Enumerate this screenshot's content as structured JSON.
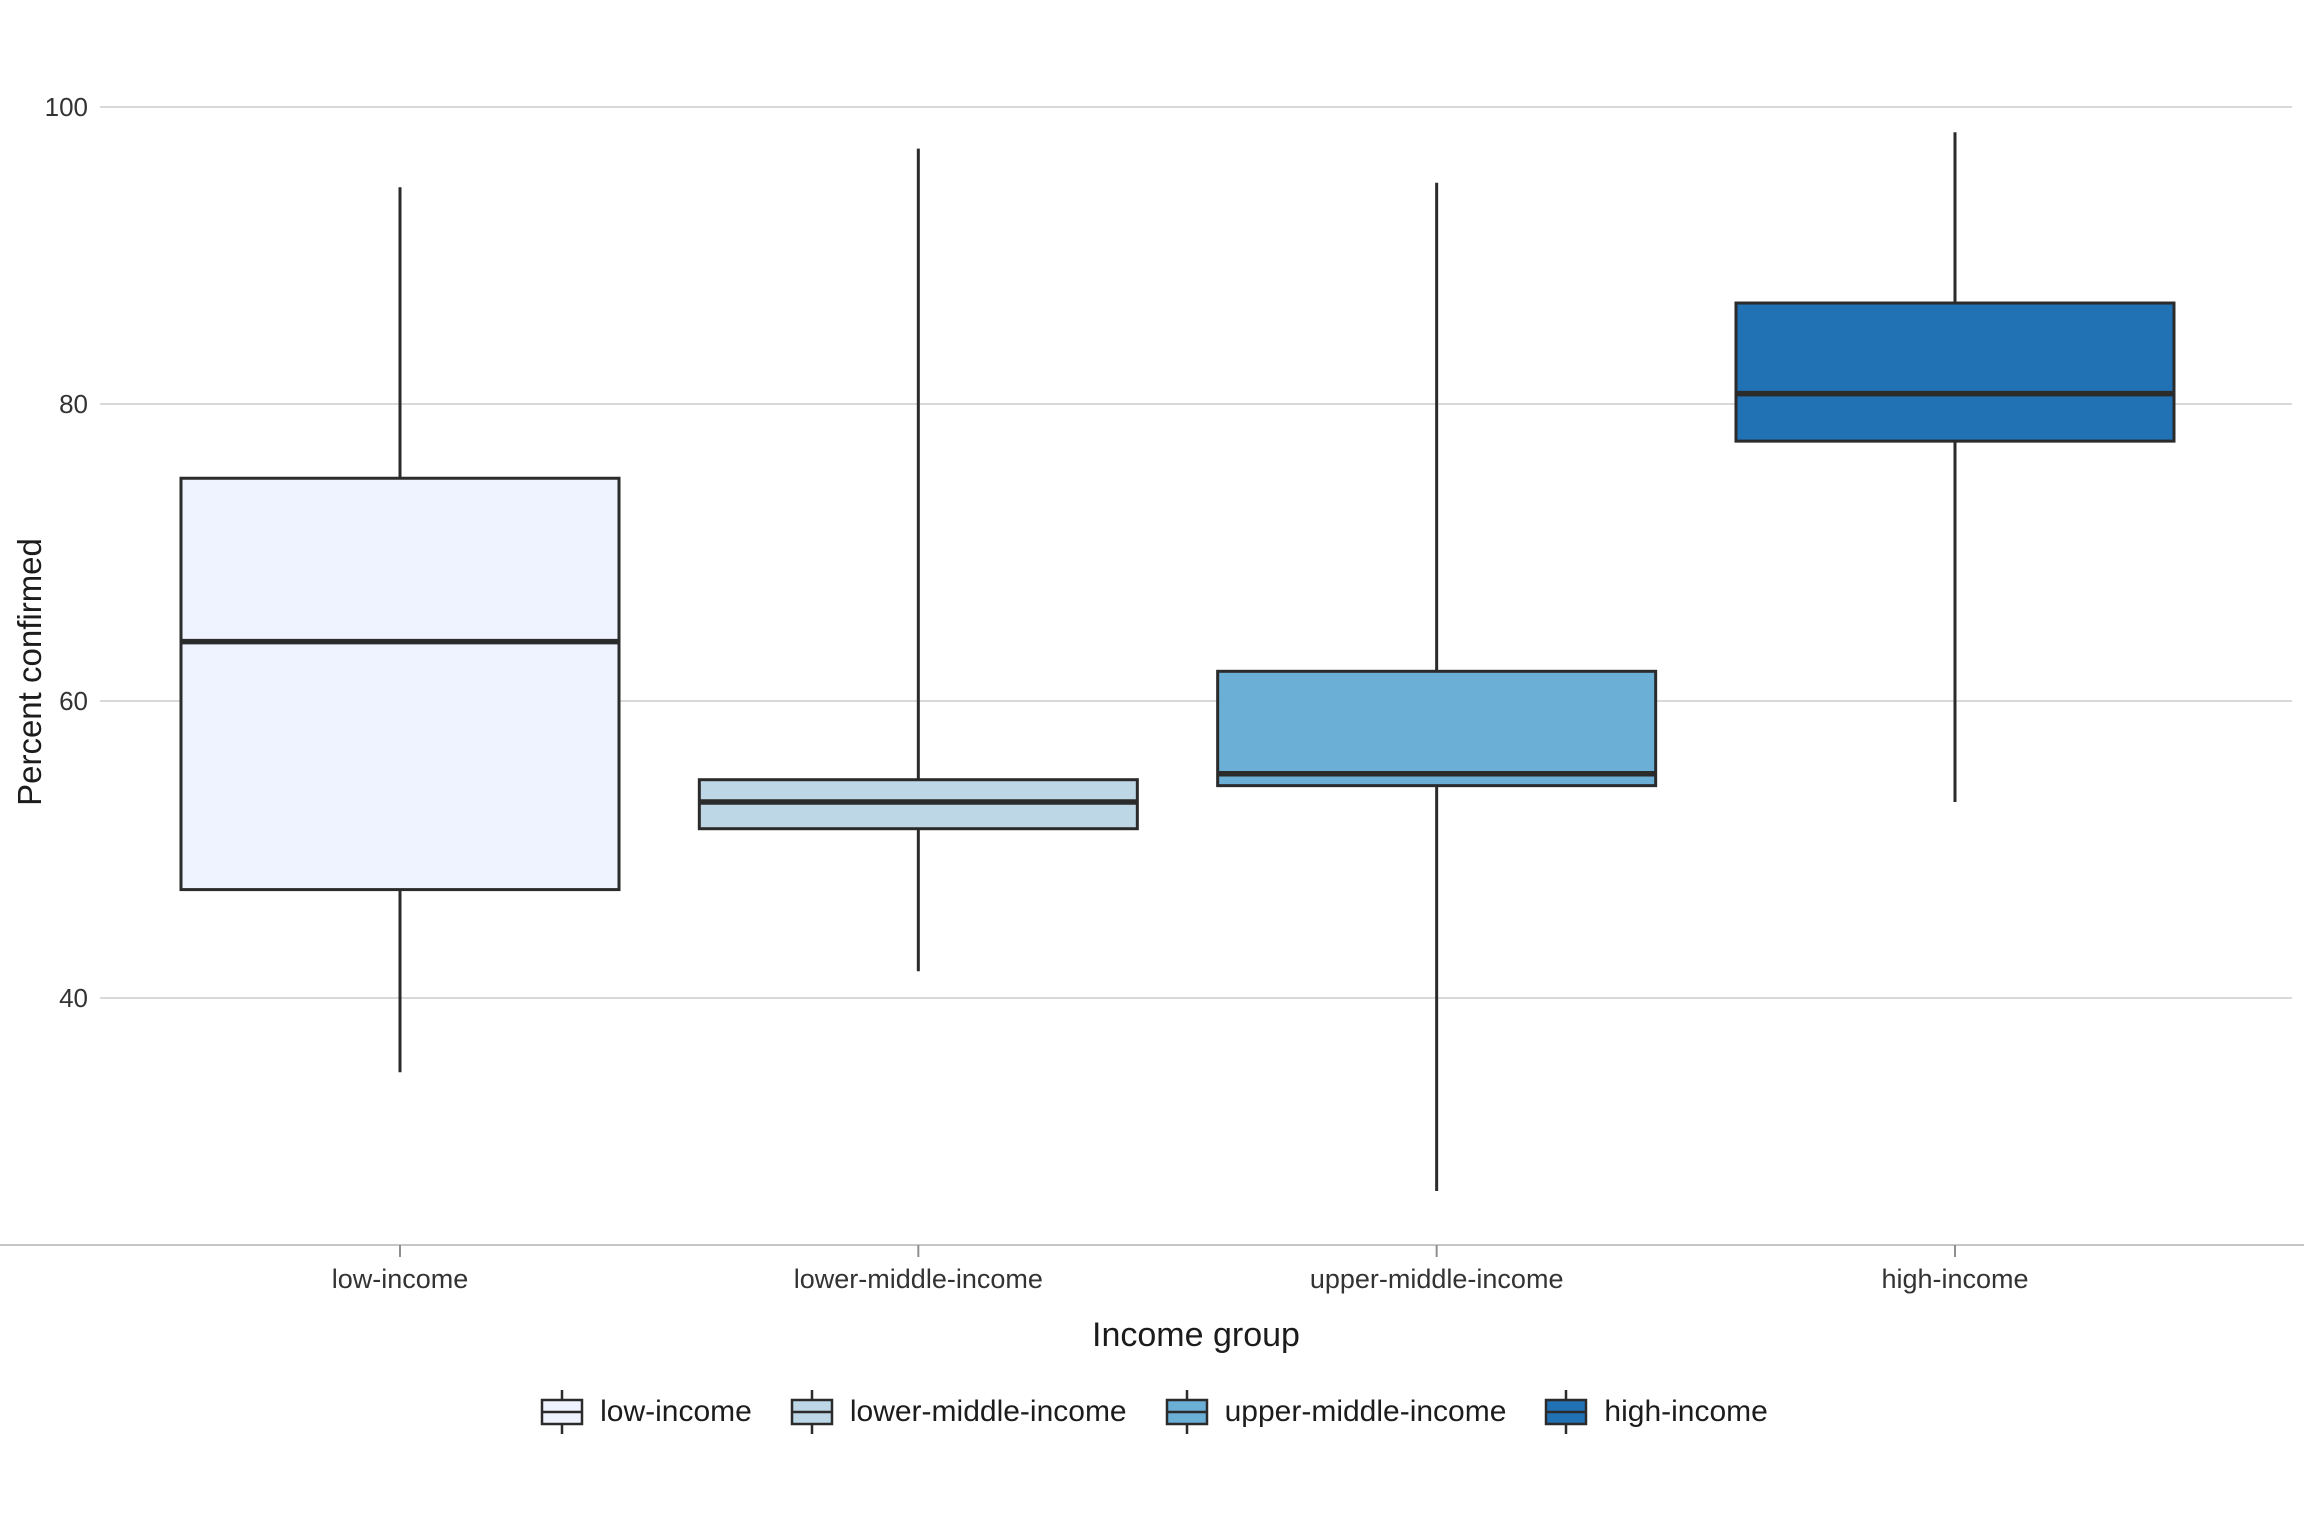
{
  "figure": {
    "background": "#ffffff"
  },
  "chart_data": {
    "type": "boxplot",
    "title": "",
    "xlabel": "Income group",
    "ylabel": "Percent confirmed",
    "ylim": [
      23,
      107
    ],
    "yticks": [
      40,
      60,
      80,
      100
    ],
    "ytick_labels": [
      "40",
      "60",
      "80",
      "100"
    ],
    "grid": true,
    "gridline_color": "#d9d9d9",
    "axis_line_color": "#c6c6c6",
    "tick_mark_color": "#8f8f8f",
    "box_border_color": "#2b2b2b",
    "categories": [
      "low-income",
      "lower-middle-income",
      "upper-middle-income",
      "high-income"
    ],
    "series": [
      {
        "name": "low-income",
        "color": "#eff3ff",
        "whisker_low": 35.0,
        "q1": 47.3,
        "median": 64.0,
        "q3": 75.0,
        "whisker_high": 94.6
      },
      {
        "name": "lower-middle-income",
        "color": "#bdd7e7",
        "whisker_low": 41.8,
        "q1": 51.4,
        "median": 53.2,
        "q3": 54.7,
        "whisker_high": 97.2
      },
      {
        "name": "upper-middle-income",
        "color": "#6baed6",
        "whisker_low": 27.0,
        "q1": 54.3,
        "median": 55.1,
        "q3": 62.0,
        "whisker_high": 94.9
      },
      {
        "name": "high-income",
        "color": "#2171b5",
        "whisker_low": 53.2,
        "q1": 77.5,
        "median": 80.7,
        "q3": 86.8,
        "whisker_high": 98.3
      }
    ],
    "legend": {
      "position": "bottom",
      "items": [
        "low-income",
        "lower-middle-income",
        "upper-middle-income",
        "high-income"
      ]
    }
  }
}
